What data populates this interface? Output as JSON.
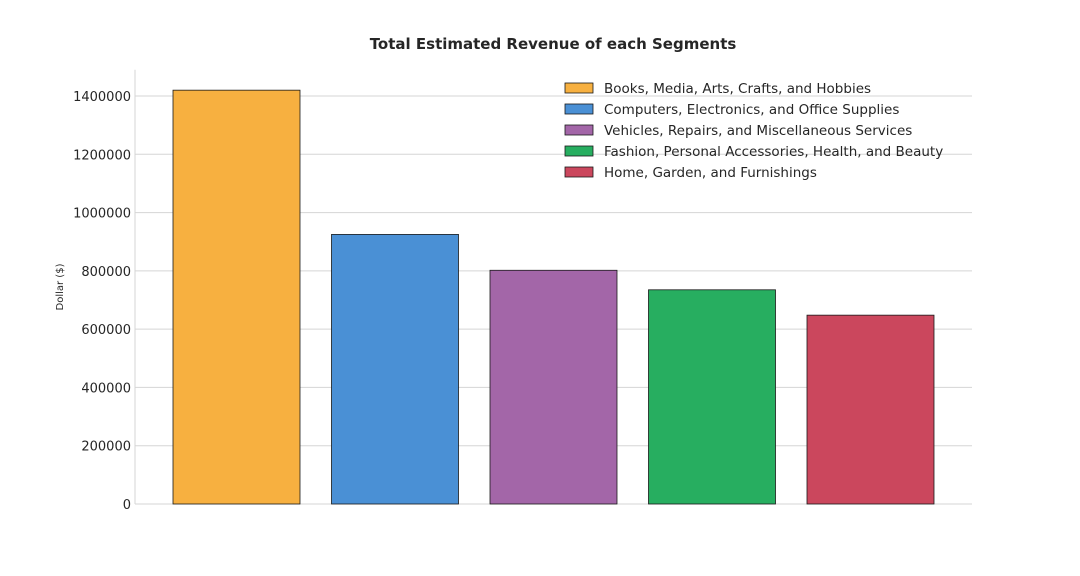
{
  "chart_data": {
    "type": "bar",
    "title": "Total Estimated Revenue of each Segments",
    "xlabel": "",
    "ylabel": "Dollar ($)",
    "ylim": [
      0,
      1490000
    ],
    "yticks": [
      0,
      200000,
      400000,
      600000,
      800000,
      1000000,
      1200000,
      1400000
    ],
    "yticks_labels": [
      "0",
      "200000",
      "400000",
      "600000",
      "800000",
      "1000000",
      "1200000",
      "1400000"
    ],
    "grid": "horizontal",
    "legend_position": "top-right",
    "categories": [
      "Books, Media, Arts, Crafts, and Hobbies",
      "Computers, Electronics, and Office Supplies",
      "Vehicles, Repairs, and Miscellaneous Services",
      "Fashion, Personal Accessories, Health, and Beauty",
      "Home, Garden, and Furnishings"
    ],
    "values": [
      1420000,
      925000,
      802000,
      735000,
      648000
    ],
    "colors": [
      "#f7b040",
      "#4a90d5",
      "#a366a8",
      "#27ae60",
      "#cb475d"
    ]
  }
}
